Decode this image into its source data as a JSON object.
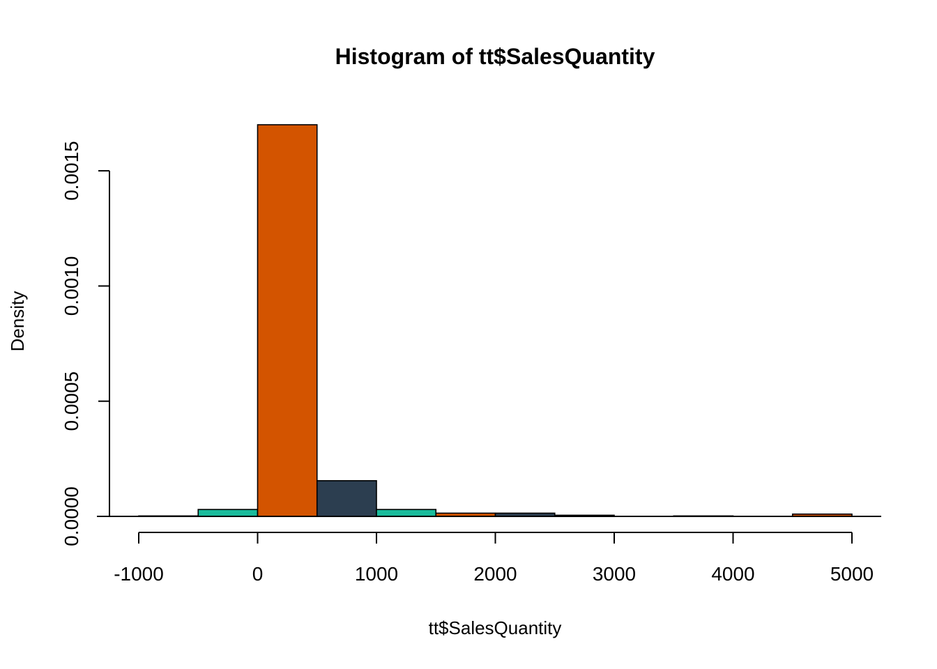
{
  "chart_data": {
    "type": "bar",
    "subtype": "histogram",
    "title": "Histogram of tt$SalesQuantity",
    "xlabel": "tt$SalesQuantity",
    "ylabel": "Density",
    "xlim": [
      -1000,
      5000
    ],
    "ylim": [
      0,
      0.0017
    ],
    "x_ticks": [
      -1000,
      0,
      1000,
      2000,
      3000,
      4000,
      5000
    ],
    "x_tick_labels": [
      "-1000",
      "0",
      "1000",
      "2000",
      "3000",
      "4000",
      "5000"
    ],
    "y_ticks": [
      0,
      0.0005,
      0.001,
      0.0015
    ],
    "y_tick_labels": [
      "0.0000",
      "0.0005",
      "0.0010",
      "0.0015"
    ],
    "grid": false,
    "legend": "none",
    "bins": [
      {
        "start": -1000,
        "end": -500,
        "density": 2e-06,
        "color": "#2c3e50"
      },
      {
        "start": -500,
        "end": 0,
        "density": 3e-05,
        "color": "#1abc9c"
      },
      {
        "start": 0,
        "end": 500,
        "density": 0.0017,
        "color": "#d35400"
      },
      {
        "start": 500,
        "end": 1000,
        "density": 0.000155,
        "color": "#2c3e50"
      },
      {
        "start": 1000,
        "end": 1500,
        "density": 3e-05,
        "color": "#1abc9c"
      },
      {
        "start": 1500,
        "end": 2000,
        "density": 1.4e-05,
        "color": "#d35400"
      },
      {
        "start": 2000,
        "end": 2500,
        "density": 1.4e-05,
        "color": "#2c3e50"
      },
      {
        "start": 2500,
        "end": 3000,
        "density": 5e-06,
        "color": "#1abc9c"
      },
      {
        "start": 3000,
        "end": 3500,
        "density": 0.0,
        "color": "#d35400"
      },
      {
        "start": 3500,
        "end": 4000,
        "density": 2e-06,
        "color": "#2c3e50"
      },
      {
        "start": 4000,
        "end": 4500,
        "density": 0.0,
        "color": "#1abc9c"
      },
      {
        "start": 4500,
        "end": 5000,
        "density": 1e-05,
        "color": "#d35400"
      }
    ]
  }
}
